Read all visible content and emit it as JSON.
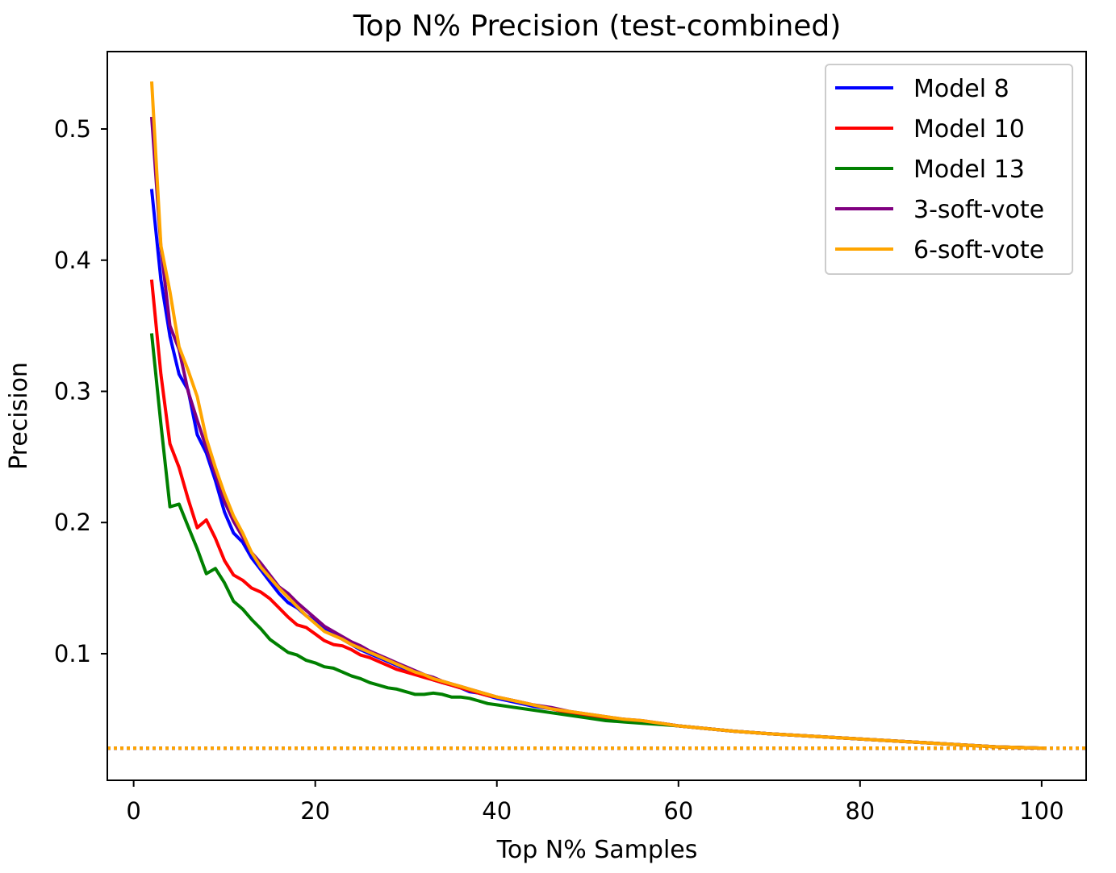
{
  "chart_data": {
    "type": "line",
    "title": "Top N% Precision (test-combined)",
    "xlabel": "Top N% Samples",
    "ylabel": "Precision",
    "xlim": [
      -2.9,
      104.9
    ],
    "ylim": [
      0.0035,
      0.559
    ],
    "xticks": [
      0,
      20,
      40,
      60,
      80,
      100
    ],
    "xtick_labels": [
      "0",
      "20",
      "40",
      "60",
      "80",
      "100"
    ],
    "yticks": [
      0.1,
      0.2,
      0.3,
      0.4,
      0.5
    ],
    "ytick_labels": [
      "0.1",
      "0.2",
      "0.3",
      "0.4",
      "0.5"
    ],
    "grid": false,
    "legend_position": "top-right",
    "x": [
      2,
      3,
      4,
      5,
      6,
      7,
      8,
      9,
      10,
      11,
      12,
      13,
      14,
      15,
      16,
      17,
      18,
      19,
      20,
      21,
      22,
      23,
      24,
      25,
      26,
      27,
      28,
      29,
      30,
      31,
      32,
      33,
      34,
      35,
      36,
      37,
      38,
      39,
      40,
      42,
      44,
      46,
      48,
      50,
      52,
      54,
      56,
      58,
      60,
      63,
      66,
      70,
      75,
      80,
      85,
      90,
      95,
      100
    ],
    "series": [
      {
        "name": "Model 8",
        "color": "#0000ff",
        "values": [
          0.453,
          0.385,
          0.342,
          0.313,
          0.301,
          0.267,
          0.253,
          0.232,
          0.208,
          0.192,
          0.185,
          0.173,
          0.164,
          0.155,
          0.146,
          0.139,
          0.135,
          0.129,
          0.125,
          0.119,
          0.116,
          0.111,
          0.107,
          0.103,
          0.1,
          0.097,
          0.094,
          0.091,
          0.088,
          0.085,
          0.083,
          0.08,
          0.078,
          0.076,
          0.074,
          0.071,
          0.07,
          0.068,
          0.066,
          0.063,
          0.06,
          0.058,
          0.055,
          0.053,
          0.051,
          0.05,
          0.048,
          0.047,
          0.045,
          0.043,
          0.041,
          0.039,
          0.037,
          0.035,
          0.033,
          0.031,
          0.029,
          0.028
        ]
      },
      {
        "name": "Model 10",
        "color": "#ff0000",
        "values": [
          0.384,
          0.313,
          0.26,
          0.242,
          0.218,
          0.196,
          0.202,
          0.188,
          0.171,
          0.16,
          0.156,
          0.15,
          0.147,
          0.142,
          0.135,
          0.128,
          0.122,
          0.12,
          0.115,
          0.11,
          0.107,
          0.106,
          0.103,
          0.099,
          0.097,
          0.094,
          0.091,
          0.088,
          0.086,
          0.084,
          0.082,
          0.08,
          0.078,
          0.076,
          0.074,
          0.072,
          0.07,
          0.068,
          0.067,
          0.064,
          0.061,
          0.058,
          0.055,
          0.053,
          0.051,
          0.049,
          0.048,
          0.047,
          0.045,
          0.043,
          0.041,
          0.039,
          0.037,
          0.035,
          0.033,
          0.031,
          0.029,
          0.028
        ]
      },
      {
        "name": "Model 13",
        "color": "#008000",
        "values": [
          0.343,
          0.275,
          0.212,
          0.214,
          0.197,
          0.18,
          0.161,
          0.165,
          0.154,
          0.14,
          0.134,
          0.126,
          0.119,
          0.111,
          0.106,
          0.101,
          0.099,
          0.095,
          0.093,
          0.09,
          0.089,
          0.086,
          0.083,
          0.081,
          0.078,
          0.076,
          0.074,
          0.073,
          0.071,
          0.069,
          0.069,
          0.07,
          0.069,
          0.067,
          0.067,
          0.066,
          0.064,
          0.062,
          0.061,
          0.059,
          0.057,
          0.055,
          0.053,
          0.051,
          0.049,
          0.048,
          0.047,
          0.046,
          0.045,
          0.043,
          0.041,
          0.039,
          0.037,
          0.035,
          0.033,
          0.031,
          0.029,
          0.028
        ]
      },
      {
        "name": "3-soft-vote",
        "color": "#800080",
        "values": [
          0.508,
          0.41,
          0.35,
          0.332,
          0.3,
          0.278,
          0.257,
          0.237,
          0.216,
          0.201,
          0.189,
          0.177,
          0.169,
          0.16,
          0.151,
          0.146,
          0.139,
          0.133,
          0.127,
          0.121,
          0.117,
          0.113,
          0.109,
          0.106,
          0.102,
          0.099,
          0.096,
          0.093,
          0.09,
          0.087,
          0.084,
          0.082,
          0.079,
          0.077,
          0.075,
          0.073,
          0.071,
          0.069,
          0.067,
          0.064,
          0.061,
          0.059,
          0.056,
          0.054,
          0.052,
          0.05,
          0.049,
          0.047,
          0.045,
          0.043,
          0.041,
          0.039,
          0.037,
          0.035,
          0.033,
          0.031,
          0.029,
          0.028
        ]
      },
      {
        "name": "6-soft-vote",
        "color": "#ffa500",
        "values": [
          0.535,
          0.411,
          0.376,
          0.334,
          0.316,
          0.296,
          0.264,
          0.242,
          0.222,
          0.205,
          0.192,
          0.177,
          0.166,
          0.158,
          0.15,
          0.143,
          0.136,
          0.129,
          0.123,
          0.117,
          0.114,
          0.111,
          0.107,
          0.104,
          0.101,
          0.098,
          0.095,
          0.092,
          0.089,
          0.086,
          0.084,
          0.081,
          0.079,
          0.077,
          0.075,
          0.073,
          0.071,
          0.069,
          0.067,
          0.064,
          0.061,
          0.058,
          0.056,
          0.054,
          0.052,
          0.05,
          0.049,
          0.047,
          0.045,
          0.043,
          0.041,
          0.039,
          0.037,
          0.035,
          0.033,
          0.031,
          0.029,
          0.028
        ]
      }
    ],
    "baseline": {
      "y": 0.028,
      "colors": [
        "#0000ff",
        "#ff0000",
        "#008000",
        "#800080",
        "#ffa500"
      ],
      "style": "dotted"
    }
  }
}
